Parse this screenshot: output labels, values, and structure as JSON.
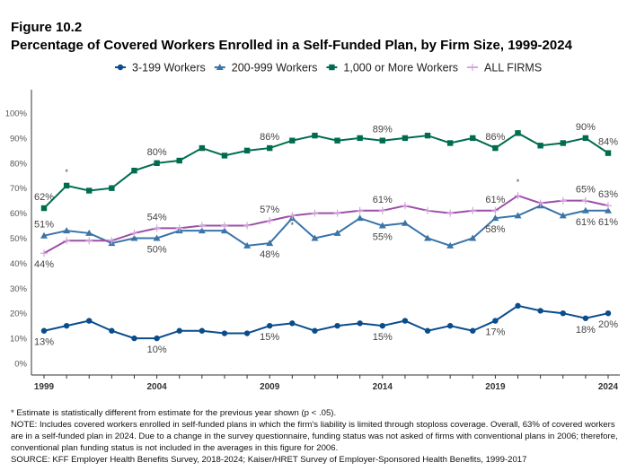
{
  "figure_label": "Figure 10.2",
  "title": "Percentage of Covered Workers Enrolled in a Self-Funded Plan, by Firm Size, 1999-2024",
  "notes": [
    "* Estimate is statistically different from estimate for the previous year shown (p < .05).",
    "NOTE: Includes covered workers enrolled in self-funded plans in which the firm's liability is limited through stoploss coverage. Overall, 63% of covered workers are in a self-funded plan in 2024. Due to a change in the survey questionnaire, funding status was not asked of firms with conventional plans in 2006; therefore, conventional plan funding status is not included in the averages in this figure for 2006.",
    "SOURCE: KFF Employer Health Benefits Survey, 2018-2024; Kaiser/HRET Survey of Employer-Sponsored Health Benefits, 1999-2017"
  ],
  "chart_data": {
    "type": "line",
    "x": [
      1999,
      2000,
      2001,
      2002,
      2003,
      2004,
      2005,
      2006,
      2007,
      2008,
      2009,
      2010,
      2011,
      2012,
      2013,
      2014,
      2015,
      2016,
      2017,
      2018,
      2019,
      2020,
      2021,
      2022,
      2023,
      2024
    ],
    "xticks": [
      "1999",
      "2004",
      "2009",
      "2014",
      "2019",
      "2024"
    ],
    "yticks": [
      "0%",
      "10%",
      "20%",
      "30%",
      "40%",
      "50%",
      "60%",
      "70%",
      "80%",
      "90%",
      "100%"
    ],
    "ylim": [
      0,
      100
    ],
    "legend_position": "top",
    "grid": false,
    "series": [
      {
        "name": "3-199 Workers",
        "color": "#0a4c8c",
        "marker": "circle",
        "values": [
          13,
          15,
          17,
          13,
          10,
          10,
          13,
          13,
          12,
          12,
          15,
          16,
          13,
          15,
          16,
          15,
          17,
          13,
          15,
          13,
          17,
          23,
          21,
          20,
          18,
          20
        ],
        "labels": [
          {
            "year": 1999,
            "text": "13%"
          },
          {
            "year": 2004,
            "text": "10%"
          },
          {
            "year": 2009,
            "text": "15%"
          },
          {
            "year": 2014,
            "text": "15%"
          },
          {
            "year": 2019,
            "text": "17%"
          },
          {
            "year": 2023,
            "text": "18%"
          },
          {
            "year": 2024,
            "text": "20%"
          }
        ],
        "significant": []
      },
      {
        "name": "200-999 Workers",
        "color": "#3a74a8",
        "marker": "triangle",
        "values": [
          51,
          53,
          52,
          48,
          50,
          50,
          53,
          53,
          53,
          47,
          48,
          58,
          50,
          52,
          58,
          55,
          56,
          50,
          47,
          50,
          58,
          59,
          63,
          59,
          61,
          61
        ],
        "labels": [
          {
            "year": 1999,
            "text": "51%"
          },
          {
            "year": 2004,
            "text": "50%"
          },
          {
            "year": 2009,
            "text": "48%"
          },
          {
            "year": 2014,
            "text": "55%"
          },
          {
            "year": 2019,
            "text": "58%"
          },
          {
            "year": 2023,
            "text": "61%"
          },
          {
            "year": 2024,
            "text": "61%"
          }
        ],
        "significant": [
          2010
        ]
      },
      {
        "name": "1,000 or More Workers",
        "color": "#006c4f",
        "marker": "square",
        "values": [
          62,
          71,
          69,
          70,
          77,
          80,
          81,
          86,
          83,
          85,
          86,
          89,
          91,
          89,
          90,
          89,
          90,
          91,
          88,
          90,
          86,
          92,
          87,
          88,
          90,
          84
        ],
        "labels": [
          {
            "year": 1999,
            "text": "62%"
          },
          {
            "year": 2004,
            "text": "80%"
          },
          {
            "year": 2009,
            "text": "86%"
          },
          {
            "year": 2014,
            "text": "89%"
          },
          {
            "year": 2019,
            "text": "86%"
          },
          {
            "year": 2023,
            "text": "90%"
          },
          {
            "year": 2024,
            "text": "84%"
          }
        ],
        "significant": [
          2000
        ]
      },
      {
        "name": "ALL FIRMS",
        "color": "#9b4fa8",
        "marker": "plus",
        "values": [
          44,
          49,
          49,
          49,
          52,
          54,
          54,
          55,
          55,
          55,
          57,
          59,
          60,
          60,
          61,
          61,
          63,
          61,
          60,
          61,
          61,
          67,
          64,
          65,
          65,
          63
        ],
        "labels": [
          {
            "year": 1999,
            "text": "44%"
          },
          {
            "year": 2004,
            "text": "54%"
          },
          {
            "year": 2009,
            "text": "57%"
          },
          {
            "year": 2014,
            "text": "61%"
          },
          {
            "year": 2019,
            "text": "61%"
          },
          {
            "year": 2023,
            "text": "65%"
          },
          {
            "year": 2024,
            "text": "63%"
          }
        ],
        "significant": [
          2020
        ]
      }
    ]
  }
}
